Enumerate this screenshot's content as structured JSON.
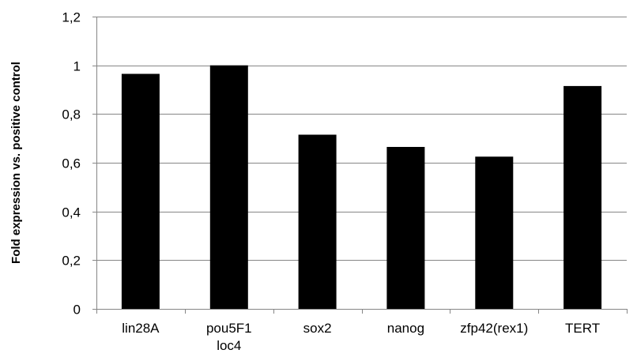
{
  "chart_data": {
    "type": "bar",
    "categories": [
      "lin28A",
      "pou5F1 loc4",
      "sox2",
      "nanog",
      "zfp42(rex1)",
      "TERT"
    ],
    "category_lines": [
      [
        "lin28A"
      ],
      [
        "pou5F1",
        "loc4"
      ],
      [
        "sox2"
      ],
      [
        "nanog"
      ],
      [
        "zfp42(rex1)"
      ],
      [
        "TERT"
      ]
    ],
    "values": [
      0.965,
      1.0,
      0.715,
      0.665,
      0.625,
      0.915
    ],
    "title": "",
    "xlabel": "",
    "ylabel": "Fold expression vs. positive control",
    "ylim": [
      0,
      1.2
    ],
    "yticks": [
      0,
      0.2,
      0.4,
      0.6,
      0.8,
      1,
      1.2
    ],
    "ytick_labels": [
      "0",
      "0,2",
      "0,4",
      "0,6",
      "0,8",
      "1",
      "1,2"
    ],
    "grid": true,
    "legend": "none",
    "bar_color": "#000000",
    "grid_color": "#868686"
  }
}
